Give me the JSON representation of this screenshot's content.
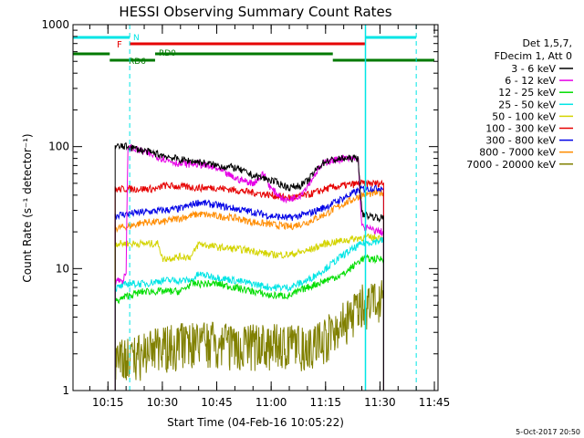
{
  "chart_data": {
    "type": "line",
    "title": "HESSI Observing Summary Count Rates",
    "xlabel": "Start Time (04-Feb-16 10:05:22)",
    "ylabel": "Count Rate (s⁻¹ detector⁻¹)",
    "yscale": "log",
    "ylim": [
      1,
      1000
    ],
    "xlim": [
      "10:05:22",
      "11:46:00"
    ],
    "y_ticks": [
      "1",
      "10",
      "100",
      "1000"
    ],
    "x_ticks": [
      "10:15",
      "10:30",
      "10:45",
      "11:00",
      "11:15",
      "11:30",
      "11:45"
    ],
    "legend_header": [
      "Det 1,5,7,",
      "FDecim 1, Att 0"
    ],
    "timestamp": "5-Oct-2017 20:50",
    "series": [
      {
        "name": "3 - 6 keV",
        "color": "#000000",
        "points": [
          [
            "10:20:30",
            100
          ],
          [
            "10:25",
            92
          ],
          [
            "10:30",
            85
          ],
          [
            "10:35",
            78
          ],
          [
            "10:40",
            75
          ],
          [
            "10:45",
            70
          ],
          [
            "10:50",
            67
          ],
          [
            "10:55",
            58
          ],
          [
            "11:00",
            53
          ],
          [
            "11:05",
            46
          ],
          [
            "11:08",
            48
          ],
          [
            "11:10",
            52
          ],
          [
            "11:13",
            68
          ],
          [
            "11:15",
            76
          ],
          [
            "11:20",
            80
          ],
          [
            "11:24",
            80
          ],
          [
            "11:25",
            28
          ],
          [
            "11:30",
            26
          ]
        ]
      },
      {
        "name": "6 - 12 keV",
        "color": "#e600e6",
        "points": [
          [
            "10:19",
            8
          ],
          [
            "10:20",
            9
          ],
          [
            "10:20:30",
            100
          ],
          [
            "10:25",
            90
          ],
          [
            "10:30",
            80
          ],
          [
            "10:35",
            72
          ],
          [
            "10:40",
            72
          ],
          [
            "10:45",
            66
          ],
          [
            "10:50",
            55
          ],
          [
            "10:55",
            50
          ],
          [
            "10:58",
            60
          ],
          [
            "11:00",
            45
          ],
          [
            "11:04",
            36
          ],
          [
            "11:08",
            40
          ],
          [
            "11:10",
            48
          ],
          [
            "11:13",
            65
          ],
          [
            "11:15",
            75
          ],
          [
            "11:20",
            80
          ],
          [
            "11:24",
            78
          ],
          [
            "11:25",
            22
          ],
          [
            "11:30",
            20
          ]
        ]
      },
      {
        "name": "12 - 25 keV",
        "color": "#00dd00",
        "points": [
          [
            "10:15",
            5
          ],
          [
            "10:20:30",
            6
          ],
          [
            "10:25",
            6.5
          ],
          [
            "10:30",
            6.5
          ],
          [
            "10:35",
            6.5
          ],
          [
            "10:38",
            7.5
          ],
          [
            "10:45",
            7.5
          ],
          [
            "10:50",
            7
          ],
          [
            "10:55",
            6.5
          ],
          [
            "11:00",
            6
          ],
          [
            "11:05",
            6
          ],
          [
            "11:10",
            7
          ],
          [
            "11:15",
            8
          ],
          [
            "11:20",
            9
          ],
          [
            "11:25",
            12
          ],
          [
            "11:30",
            12
          ]
        ]
      },
      {
        "name": "25 - 50 keV",
        "color": "#00e5e5",
        "points": [
          [
            "10:15",
            6.5
          ],
          [
            "10:20:30",
            7.5
          ],
          [
            "10:25",
            7.5
          ],
          [
            "10:30",
            8
          ],
          [
            "10:38",
            8
          ],
          [
            "10:40",
            9
          ],
          [
            "10:45",
            8.5
          ],
          [
            "10:55",
            7.5
          ],
          [
            "11:00",
            7
          ],
          [
            "11:05",
            7
          ],
          [
            "11:10",
            8
          ],
          [
            "11:15",
            10
          ],
          [
            "11:20",
            13
          ],
          [
            "11:25",
            16
          ],
          [
            "11:30",
            17
          ]
        ]
      },
      {
        "name": "50 - 100 keV",
        "color": "#d4d400",
        "points": [
          [
            "10:15",
            16
          ],
          [
            "10:20",
            16
          ],
          [
            "10:25",
            16
          ],
          [
            "10:29",
            16
          ],
          [
            "10:30",
            12
          ],
          [
            "10:35",
            12.5
          ],
          [
            "10:38",
            12.5
          ],
          [
            "10:40",
            16
          ],
          [
            "10:45",
            15
          ],
          [
            "10:55",
            14
          ],
          [
            "11:00",
            13
          ],
          [
            "11:05",
            13
          ],
          [
            "11:10",
            14
          ],
          [
            "11:15",
            16
          ],
          [
            "11:20",
            17
          ],
          [
            "11:25",
            18
          ],
          [
            "11:30",
            18
          ]
        ]
      },
      {
        "name": "100 - 300 keV",
        "color": "#e60000",
        "points": [
          [
            "10:15",
            44
          ],
          [
            "10:20",
            45
          ],
          [
            "10:25",
            45
          ],
          [
            "10:29",
            45
          ],
          [
            "10:30",
            48
          ],
          [
            "10:35",
            47
          ],
          [
            "10:40",
            46
          ],
          [
            "10:45",
            46
          ],
          [
            "10:50",
            44
          ],
          [
            "10:55",
            42
          ],
          [
            "11:00",
            40
          ],
          [
            "11:05",
            38
          ],
          [
            "11:10",
            40
          ],
          [
            "11:15",
            45
          ],
          [
            "11:20",
            48
          ],
          [
            "11:25",
            50
          ],
          [
            "11:30",
            50
          ]
        ]
      },
      {
        "name": "300 - 800 keV",
        "color": "#0000e6",
        "points": [
          [
            "10:15",
            27
          ],
          [
            "10:20",
            28
          ],
          [
            "10:25",
            29
          ],
          [
            "10:30",
            30
          ],
          [
            "10:35",
            31
          ],
          [
            "10:40",
            35
          ],
          [
            "10:45",
            33
          ],
          [
            "10:50",
            31
          ],
          [
            "10:55",
            29
          ],
          [
            "11:00",
            27
          ],
          [
            "11:05",
            26
          ],
          [
            "11:10",
            28
          ],
          [
            "11:15",
            32
          ],
          [
            "11:20",
            38
          ],
          [
            "11:25",
            45
          ],
          [
            "11:30",
            46
          ]
        ]
      },
      {
        "name": "800 - 7000 keV",
        "color": "#ff8c00",
        "points": [
          [
            "10:15",
            21
          ],
          [
            "10:20",
            22
          ],
          [
            "10:25",
            24
          ],
          [
            "10:30",
            24
          ],
          [
            "10:35",
            26
          ],
          [
            "10:40",
            28
          ],
          [
            "10:45",
            27
          ],
          [
            "10:50",
            26
          ],
          [
            "10:55",
            24
          ],
          [
            "11:00",
            23
          ],
          [
            "11:05",
            22
          ],
          [
            "11:10",
            24
          ],
          [
            "11:15",
            28
          ],
          [
            "11:20",
            34
          ],
          [
            "11:25",
            40
          ],
          [
            "11:30",
            42
          ]
        ]
      },
      {
        "name": "7000 - 20000 keV",
        "color": "#808000",
        "points": [
          [
            "10:15",
            2
          ],
          [
            "10:20",
            2
          ],
          [
            "10:30",
            2.5
          ],
          [
            "10:40",
            2.8
          ],
          [
            "10:50",
            2.6
          ],
          [
            "11:00",
            2.6
          ],
          [
            "11:10",
            2.6
          ],
          [
            "11:15",
            3
          ],
          [
            "11:20",
            4
          ],
          [
            "11:25",
            5.5
          ],
          [
            "11:30",
            6
          ]
        ]
      }
    ],
    "flag_bars": [
      {
        "label": "N",
        "color": "#00e5e5",
        "segments": [
          [
            "10:05:22",
            "10:21"
          ],
          [
            "11:26",
            "11:40"
          ]
        ]
      },
      {
        "label": "F",
        "color": "#e60000",
        "segments": [
          [
            "10:21",
            "11:26"
          ]
        ]
      },
      {
        "label": "RD0",
        "color": "#007a00",
        "segments": [
          [
            "10:05:22",
            "10:15:30"
          ],
          [
            "10:28",
            "11:17"
          ]
        ]
      },
      {
        "label": "RD6",
        "color": "#007a00",
        "segments": [
          [
            "10:15:30",
            "10:28"
          ],
          [
            "11:17",
            "11:45"
          ]
        ]
      }
    ],
    "night_boundaries": [
      "10:21",
      "11:26",
      "11:40"
    ],
    "data_interval": [
      "10:17",
      "11:31"
    ]
  }
}
